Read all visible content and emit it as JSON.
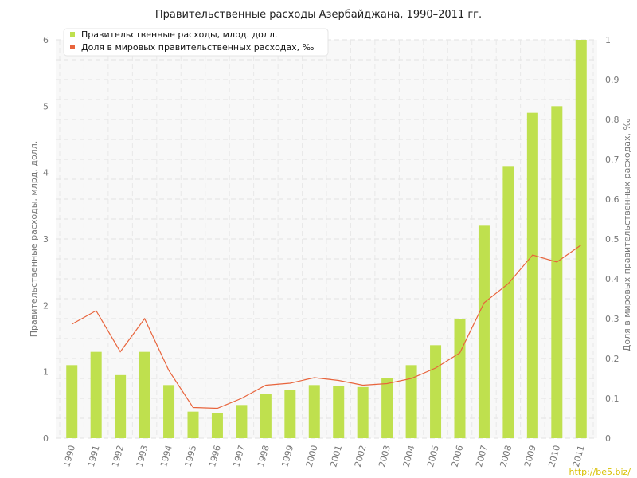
{
  "chart_data": {
    "type": "bar",
    "title": "Правительственные расходы Азербайджана, 1990–2011 гг.",
    "categories": [
      "1990",
      "1991",
      "1992",
      "1993",
      "1994",
      "1995",
      "1996",
      "1997",
      "1998",
      "1999",
      "2000",
      "2001",
      "2002",
      "2003",
      "2004",
      "2005",
      "2006",
      "2007",
      "2008",
      "2009",
      "2010",
      "2011"
    ],
    "series": [
      {
        "name": "Правительственные расходы, млрд. долл.",
        "type": "bar",
        "axis": "left",
        "color": "#bfe04e",
        "values": [
          1.1,
          1.3,
          0.95,
          1.3,
          0.8,
          0.4,
          0.38,
          0.5,
          0.67,
          0.72,
          0.8,
          0.78,
          0.77,
          0.9,
          1.1,
          1.4,
          1.8,
          3.2,
          4.1,
          4.9,
          5.0,
          6.0
        ]
      },
      {
        "name": "Доля в мировых правительственных расходах, ‰",
        "type": "line",
        "axis": "right",
        "color": "#e8643c",
        "values": [
          0.286,
          0.32,
          0.217,
          0.3,
          0.17,
          0.077,
          0.075,
          0.1,
          0.133,
          0.138,
          0.152,
          0.145,
          0.133,
          0.137,
          0.15,
          0.176,
          0.214,
          0.34,
          0.388,
          0.46,
          0.442,
          0.485
        ]
      }
    ],
    "ylabel": "Правительственные расходы, млрд. долл.",
    "y2label": "Доля в мировых правительственных расходах, ‰",
    "ylim": [
      0,
      6
    ],
    "y2lim": [
      0,
      1
    ],
    "yticks": [
      "0",
      "1",
      "2",
      "3",
      "4",
      "5",
      "6"
    ],
    "y2ticks": [
      "0",
      "0.1",
      "0.2",
      "0.3",
      "0.4",
      "0.5",
      "0.6",
      "0.7",
      "0.8",
      "0.9",
      "1"
    ],
    "grid": true,
    "legend": "top-left"
  },
  "watermark": "http://be5.biz/"
}
